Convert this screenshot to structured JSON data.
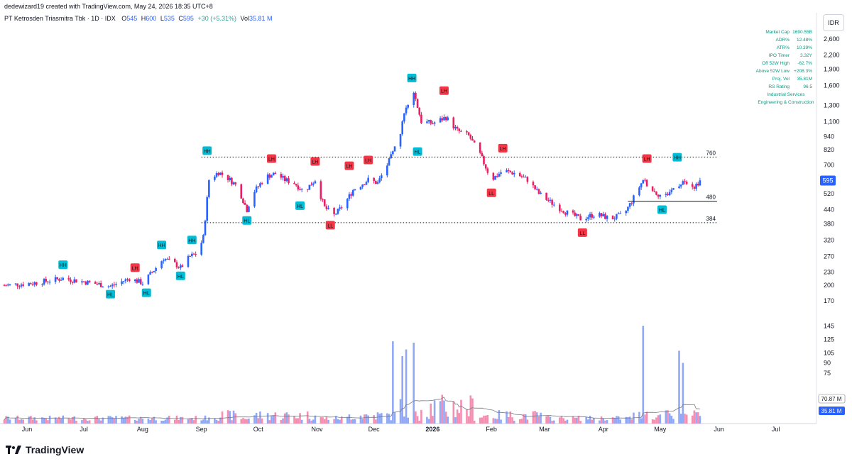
{
  "header": {
    "created_by": "dedewizard19 created with TradingView.com, May 24, 2026 18:35 UTC+8",
    "symbol_name": "PT Ketrosden Triasmitra Tbk · 1D · IDX",
    "o_label": "O",
    "o_value": "545",
    "h_label": "H",
    "h_value": "600",
    "l_label": "L",
    "l_value": "535",
    "c_label": "C",
    "c_value": "595",
    "change": "+30 (+5.31%)",
    "vol_label": "Vol",
    "vol_value": "35.81 M"
  },
  "currency": "IDR",
  "stats_table": [
    {
      "label": "Market Cap",
      "value": "1690.55B"
    },
    {
      "label": "ADR%",
      "value": "12.48%"
    },
    {
      "label": "ATR%",
      "value": "10.39%"
    },
    {
      "label": "IPO Timer",
      "value": "3.32Y"
    },
    {
      "label": "Off 52W High",
      "value": "-62.7%"
    },
    {
      "label": "Above 52W Low",
      "value": "+208.3%"
    },
    {
      "label": "Proj. Vol",
      "value": "35.81M"
    },
    {
      "label": "RS Rating",
      "value": "96.5"
    }
  ],
  "sector_lines": [
    "Industrial Services",
    "Engineering & Construction"
  ],
  "colors": {
    "up": "#2962ff",
    "down": "#e91e63",
    "vol_up": "#90a8f5",
    "vol_down": "#f48fb1",
    "hh": "#00bcd4",
    "lh": "#f23645",
    "price_tag": "#2962ff",
    "teal_text": "#089981"
  },
  "footer": {
    "brand": "TradingView"
  },
  "chart_data": {
    "type": "candlestick",
    "y_scale": "log",
    "ylim": [
      148,
      2900
    ],
    "y_ticks": [
      "2,600",
      "2,200",
      "1,900",
      "1,600",
      "1,300",
      "1,100",
      "940",
      "820",
      "700",
      "600",
      "520",
      "440",
      "380",
      "320",
      "270",
      "230",
      "200",
      "170"
    ],
    "y_tick_values": [
      2600,
      2200,
      1900,
      1600,
      1300,
      1100,
      940,
      820,
      700,
      600,
      520,
      440,
      380,
      320,
      270,
      230,
      200,
      170
    ],
    "volume_ticks": [
      "145",
      "125",
      "105",
      "90",
      "75"
    ],
    "volume_tick_values": [
      145,
      125,
      105,
      90,
      75
    ],
    "x_ticks": [
      "Jun",
      "Jul",
      "Aug",
      "Sep",
      "Oct",
      "Nov",
      "Dec",
      "2026",
      "Feb",
      "Mar",
      "Apr",
      "May",
      "Jun",
      "Jul"
    ],
    "x_tick_dates": [
      "2025-06-01",
      "2025-07-01",
      "2025-08-01",
      "2025-09-01",
      "2025-10-01",
      "2025-11-01",
      "2025-12-01",
      "2026-01-01",
      "2026-02-01",
      "2026-03-01",
      "2026-04-01",
      "2026-05-01",
      "2026-06-01",
      "2026-07-01"
    ],
    "x_start_date": "2025-05-20",
    "last_price": "595",
    "ma_volume_label": "70.87 M",
    "volume_label": "35.81 M",
    "horizontal_levels": [
      {
        "price": 760,
        "label": "760",
        "style": "dotted",
        "from": "2025-09-01",
        "to": "2026-05-31"
      },
      {
        "price": 384,
        "label": "384",
        "style": "dotted",
        "from": "2025-09-01",
        "to": "2026-05-31"
      },
      {
        "price": 480,
        "label": "480",
        "style": "solid",
        "from": "2026-04-14",
        "to": "2026-05-31"
      }
    ],
    "pivots": [
      {
        "label": "HH",
        "date": "2025-06-20",
        "price": 232,
        "pos": "above"
      },
      {
        "label": "HL",
        "date": "2025-07-15",
        "price": 195,
        "pos": "below"
      },
      {
        "label": "LH",
        "date": "2025-07-28",
        "price": 225,
        "pos": "above"
      },
      {
        "label": "HL",
        "date": "2025-08-03",
        "price": 198,
        "pos": "below"
      },
      {
        "label": "HH",
        "date": "2025-08-11",
        "price": 285,
        "pos": "above"
      },
      {
        "label": "HL",
        "date": "2025-08-21",
        "price": 236,
        "pos": "below"
      },
      {
        "label": "HH",
        "date": "2025-08-27",
        "price": 300,
        "pos": "above"
      },
      {
        "label": "HH",
        "date": "2025-09-04",
        "price": 760,
        "pos": "above"
      },
      {
        "label": "HL",
        "date": "2025-09-25",
        "price": 420,
        "pos": "below"
      },
      {
        "label": "LH",
        "date": "2025-10-08",
        "price": 700,
        "pos": "above"
      },
      {
        "label": "HL",
        "date": "2025-10-23",
        "price": 490,
        "pos": "below"
      },
      {
        "label": "LH",
        "date": "2025-10-31",
        "price": 680,
        "pos": "above"
      },
      {
        "label": "LL",
        "date": "2025-11-08",
        "price": 400,
        "pos": "below"
      },
      {
        "label": "LH",
        "date": "2025-11-18",
        "price": 650,
        "pos": "above"
      },
      {
        "label": "LH",
        "date": "2025-11-28",
        "price": 690,
        "pos": "above"
      },
      {
        "label": "HH",
        "date": "2025-12-21",
        "price": 1620,
        "pos": "above"
      },
      {
        "label": "HL",
        "date": "2025-12-24",
        "price": 860,
        "pos": "below"
      },
      {
        "label": "LH",
        "date": "2026-01-07",
        "price": 1420,
        "pos": "above"
      },
      {
        "label": "LL",
        "date": "2026-02-01",
        "price": 560,
        "pos": "below"
      },
      {
        "label": "LH",
        "date": "2026-02-07",
        "price": 780,
        "pos": "above"
      },
      {
        "label": "LL",
        "date": "2026-03-21",
        "price": 370,
        "pos": "below"
      },
      {
        "label": "LH",
        "date": "2026-04-24",
        "price": 700,
        "pos": "above"
      },
      {
        "label": "HL",
        "date": "2026-05-02",
        "price": 470,
        "pos": "below"
      },
      {
        "label": "HH",
        "date": "2026-05-10",
        "price": 710,
        "pos": "above"
      }
    ],
    "close_path": [
      [
        "2025-05-20",
        200
      ],
      [
        "2025-06-05",
        205
      ],
      [
        "2025-06-20",
        215
      ],
      [
        "2025-07-05",
        205
      ],
      [
        "2025-07-15",
        198
      ],
      [
        "2025-07-25",
        215
      ],
      [
        "2025-08-01",
        205
      ],
      [
        "2025-08-08",
        240
      ],
      [
        "2025-08-12",
        265
      ],
      [
        "2025-08-18",
        250
      ],
      [
        "2025-08-21",
        240
      ],
      [
        "2025-08-26",
        270
      ],
      [
        "2025-08-30",
        280
      ],
      [
        "2025-09-02",
        330
      ],
      [
        "2025-09-05",
        600
      ],
      [
        "2025-09-10",
        650
      ],
      [
        "2025-09-15",
        610
      ],
      [
        "2025-09-20",
        560
      ],
      [
        "2025-09-25",
        440
      ],
      [
        "2025-09-28",
        520
      ],
      [
        "2025-10-05",
        620
      ],
      [
        "2025-10-10",
        640
      ],
      [
        "2025-10-15",
        600
      ],
      [
        "2025-10-20",
        580
      ],
      [
        "2025-10-25",
        530
      ],
      [
        "2025-10-31",
        600
      ],
      [
        "2025-11-05",
        450
      ],
      [
        "2025-11-10",
        415
      ],
      [
        "2025-11-15",
        460
      ],
      [
        "2025-11-20",
        540
      ],
      [
        "2025-11-28",
        600
      ],
      [
        "2025-12-03",
        580
      ],
      [
        "2025-12-08",
        700
      ],
      [
        "2025-12-14",
        900
      ],
      [
        "2025-12-18",
        1300
      ],
      [
        "2025-12-22",
        1500
      ],
      [
        "2025-12-26",
        1100
      ],
      [
        "2026-01-01",
        1080
      ],
      [
        "2026-01-08",
        1150
      ],
      [
        "2026-01-14",
        1000
      ],
      [
        "2026-01-20",
        950
      ],
      [
        "2026-01-26",
        780
      ],
      [
        "2026-02-01",
        600
      ],
      [
        "2026-02-07",
        660
      ],
      [
        "2026-02-14",
        640
      ],
      [
        "2026-02-20",
        600
      ],
      [
        "2026-02-26",
        520
      ],
      [
        "2026-03-05",
        470
      ],
      [
        "2026-03-12",
        430
      ],
      [
        "2026-03-20",
        400
      ],
      [
        "2026-03-28",
        420
      ],
      [
        "2026-04-05",
        400
      ],
      [
        "2026-04-12",
        420
      ],
      [
        "2026-04-16",
        480
      ],
      [
        "2026-04-22",
        600
      ],
      [
        "2026-04-28",
        530
      ],
      [
        "2026-05-03",
        500
      ],
      [
        "2026-05-09",
        560
      ],
      [
        "2026-05-14",
        600
      ],
      [
        "2026-05-19",
        560
      ],
      [
        "2026-05-22",
        595
      ]
    ],
    "volume_spikes": [
      [
        "2025-12-11",
        122
      ],
      [
        "2025-12-14",
        145
      ],
      [
        "2025-12-16",
        100
      ],
      [
        "2025-12-18",
        110
      ],
      [
        "2025-12-20",
        150
      ],
      [
        "2025-12-22",
        120
      ],
      [
        "2026-04-19",
        140
      ],
      [
        "2026-04-22",
        145
      ],
      [
        "2026-04-25",
        123
      ],
      [
        "2026-05-09",
        155
      ],
      [
        "2026-05-11",
        108
      ],
      [
        "2026-05-13",
        90
      ]
    ]
  }
}
